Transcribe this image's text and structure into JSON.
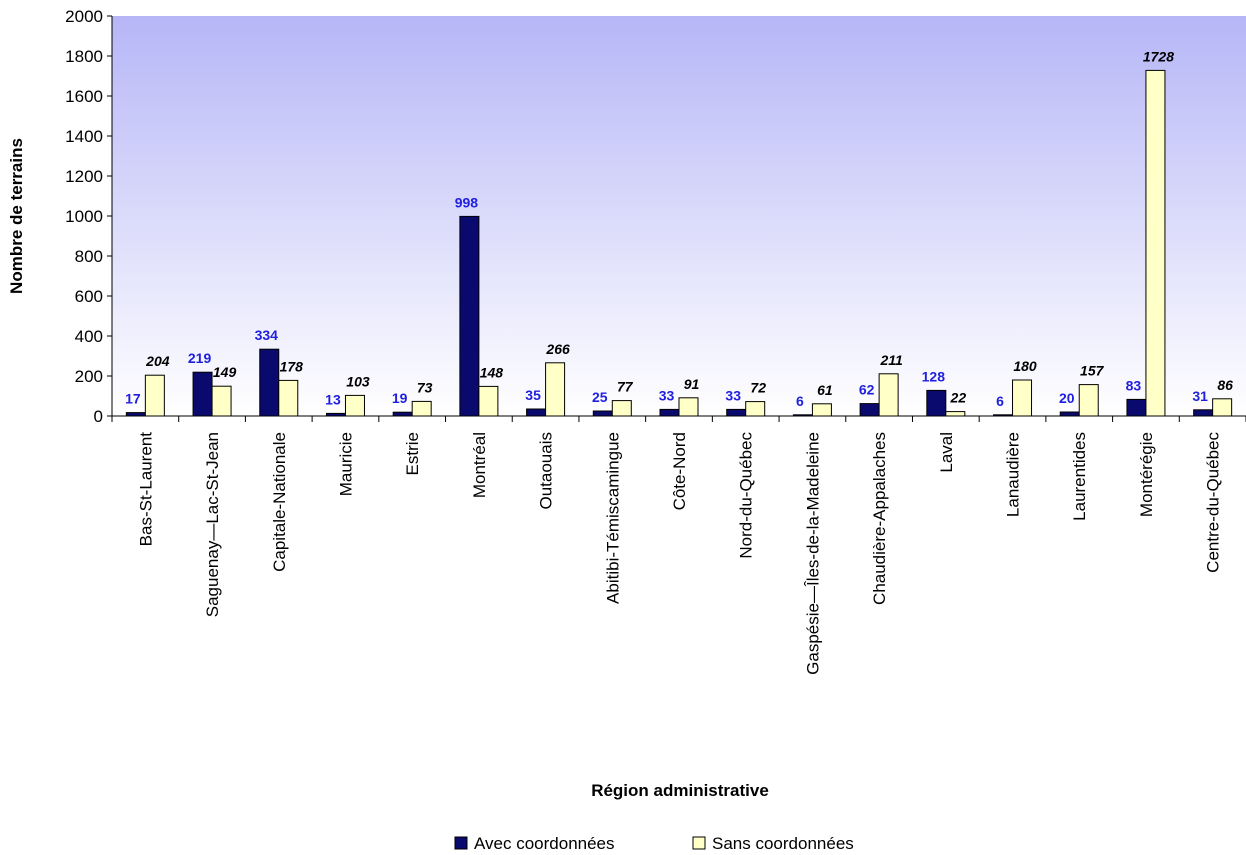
{
  "chart_data": {
    "type": "bar",
    "title": "",
    "xlabel": "Région administrative",
    "ylabel": "Nombre de terrains",
    "ylim": [
      0,
      2000
    ],
    "yticks": [
      "0",
      "200",
      "400",
      "600",
      "800",
      "1000",
      "1200",
      "1400",
      "1600",
      "1800",
      "2000"
    ],
    "categories": [
      "Bas-St-Laurent",
      "Saguenay—Lac-St-Jean",
      "Capitale-Nationale",
      "Mauricie",
      "Estrie",
      "Montréal",
      "Outaouais",
      "Abitibi-Témiscamingue",
      "Côte-Nord",
      "Nord-du-Québec",
      "Gaspésie—Îles-de-la-Madeleine",
      "Chaudière-Appalaches",
      "Laval",
      "Lanaudière",
      "Laurentides",
      "Montérégie",
      "Centre-du-Québec"
    ],
    "series": [
      {
        "name": "Avec coordonnées",
        "color": "#0a0a6e",
        "label_color": "#1f1fe0",
        "values": [
          17,
          219,
          334,
          13,
          19,
          998,
          35,
          25,
          33,
          33,
          6,
          62,
          128,
          6,
          20,
          83,
          31
        ]
      },
      {
        "name": "Sans coordonnées",
        "color": "#ffffc8",
        "label_color": "#000000",
        "values": [
          204,
          149,
          178,
          103,
          73,
          148,
          266,
          77,
          91,
          72,
          61,
          211,
          22,
          180,
          157,
          1728,
          86
        ]
      }
    ],
    "grid": false,
    "legend_position": "bottom",
    "plot_background": "gradient lavender to white"
  }
}
